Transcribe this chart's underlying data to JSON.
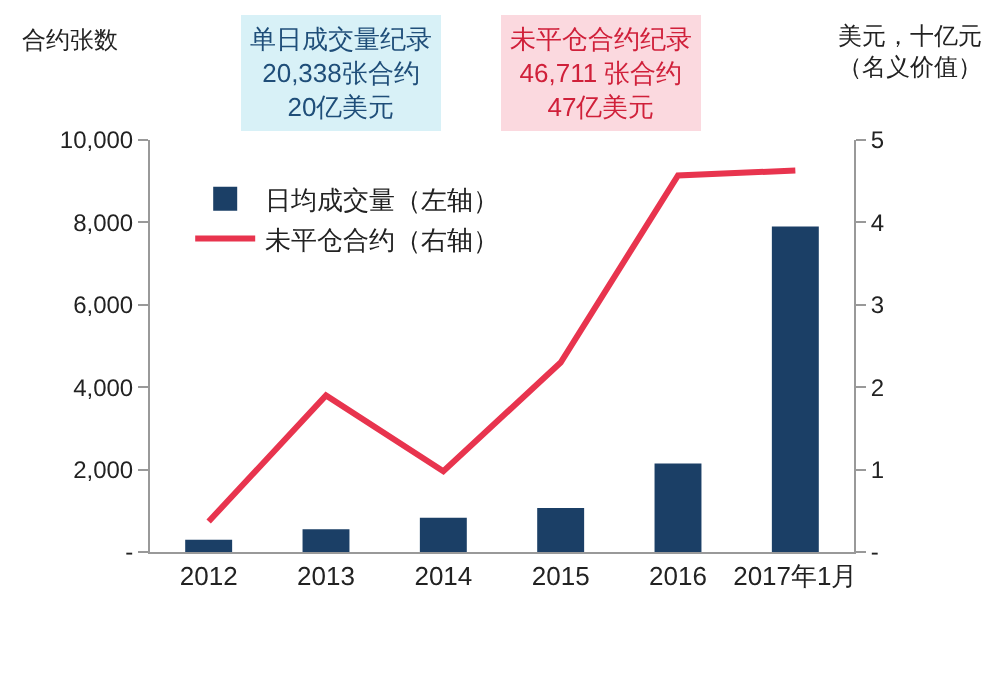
{
  "chart_data": {
    "type": "bar",
    "ylabel": "合约张数",
    "y2label": "美元，十亿元（名义价值）",
    "categories": [
      "2012",
      "2013",
      "2014",
      "2015",
      "2016",
      "2017年1月"
    ],
    "series": [
      {
        "name": "日均成交量（左轴）",
        "color": "#1b3f66",
        "values": [
          300,
          550,
          830,
          1070,
          2150,
          7900
        ]
      },
      {
        "name": "未平仓合约（右轴）",
        "type": "line",
        "axis": "y2",
        "color": "#e8344e",
        "values": [
          0.37,
          1.9,
          0.98,
          2.3,
          4.57,
          4.63
        ]
      }
    ],
    "ylim": [
      0,
      10000
    ],
    "yticks": [
      {
        "value": 0,
        "label": "-"
      },
      {
        "value": 2000,
        "label": "2,000"
      },
      {
        "value": 4000,
        "label": "4,000"
      },
      {
        "value": 6000,
        "label": "6,000"
      },
      {
        "value": 8000,
        "label": "8,000"
      },
      {
        "value": 10000,
        "label": "10,000"
      }
    ],
    "y2lim": [
      0,
      5
    ],
    "y2ticks": [
      {
        "value": 0,
        "label": "-"
      },
      1,
      2,
      3,
      4,
      5
    ],
    "annotations": [
      "单日成交量纪录\n20,338张合约\n20亿美元",
      "未平仓合约纪录\n46,711 张合约\n47亿美元"
    ],
    "legend": "top left",
    "grid": false,
    "marker": "none",
    "line_style": "solid"
  }
}
